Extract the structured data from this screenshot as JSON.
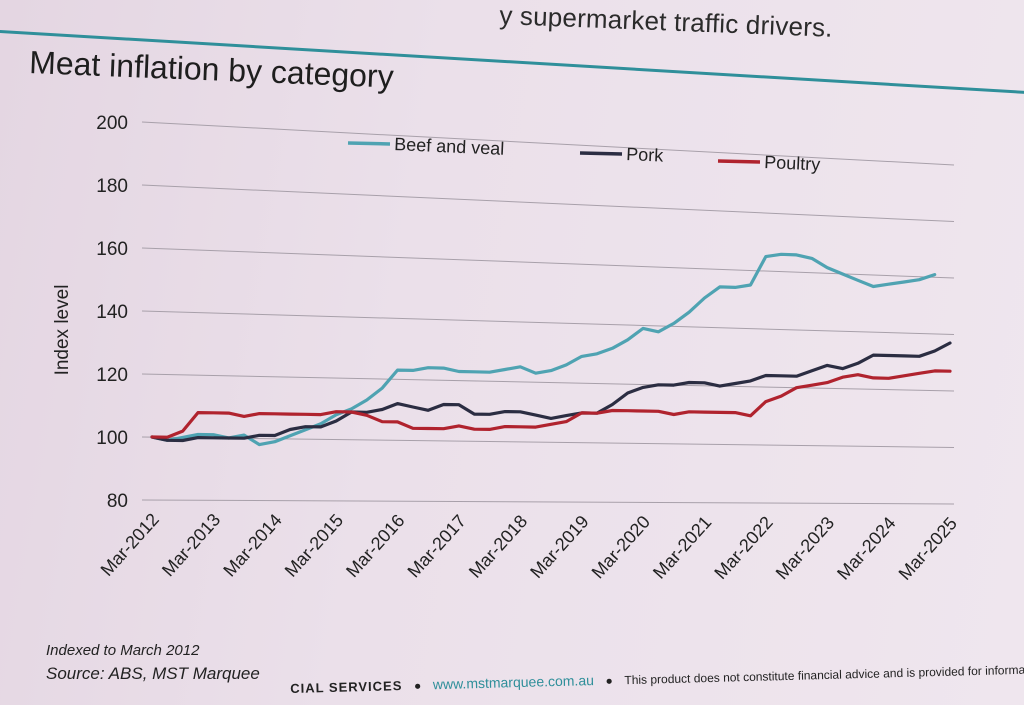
{
  "header": {
    "caption": "y supermarket traffic drivers."
  },
  "chart_data": {
    "type": "line",
    "title": "Meat inflation by category",
    "xlabel": "",
    "ylabel": "Index level",
    "ylim": [
      80,
      200
    ],
    "yticks": [
      80,
      100,
      120,
      140,
      160,
      180,
      200
    ],
    "xlim": [
      2012.17,
      2025.17
    ],
    "xticks": [
      {
        "label": "Mar-2012",
        "t": 2012.17
      },
      {
        "label": "Mar-2013",
        "t": 2013.17
      },
      {
        "label": "Mar-2014",
        "t": 2014.17
      },
      {
        "label": "Mar-2015",
        "t": 2015.17
      },
      {
        "label": "Mar-2016",
        "t": 2016.17
      },
      {
        "label": "Mar-2017",
        "t": 2017.17
      },
      {
        "label": "Mar-2018",
        "t": 2018.17
      },
      {
        "label": "Mar-2019",
        "t": 2019.17
      },
      {
        "label": "Mar-2020",
        "t": 2020.17
      },
      {
        "label": "Mar-2021",
        "t": 2021.17
      },
      {
        "label": "Mar-2022",
        "t": 2022.17
      },
      {
        "label": "Mar-2023",
        "t": 2023.17
      },
      {
        "label": "Mar-2024",
        "t": 2024.17
      },
      {
        "label": "Mar-2025",
        "t": 2025.17
      }
    ],
    "grid": true,
    "legend": "top",
    "series": [
      {
        "name": "Beef and veal",
        "color": "#4fa3b2",
        "points": [
          [
            2012.17,
            100
          ],
          [
            2012.42,
            99
          ],
          [
            2012.67,
            100
          ],
          [
            2012.92,
            101
          ],
          [
            2013.17,
            101
          ],
          [
            2013.42,
            100
          ],
          [
            2013.67,
            101
          ],
          [
            2013.92,
            98
          ],
          [
            2014.17,
            99
          ],
          [
            2014.42,
            101
          ],
          [
            2014.67,
            103
          ],
          [
            2014.92,
            105
          ],
          [
            2015.17,
            108
          ],
          [
            2015.42,
            110
          ],
          [
            2015.67,
            113
          ],
          [
            2015.92,
            117
          ],
          [
            2016.17,
            123
          ],
          [
            2016.42,
            123
          ],
          [
            2016.67,
            124
          ],
          [
            2016.92,
            124
          ],
          [
            2017.17,
            123
          ],
          [
            2017.42,
            123
          ],
          [
            2017.67,
            123
          ],
          [
            2017.92,
            124
          ],
          [
            2018.17,
            125
          ],
          [
            2018.42,
            123
          ],
          [
            2018.67,
            124
          ],
          [
            2018.92,
            126
          ],
          [
            2019.17,
            129
          ],
          [
            2019.42,
            130
          ],
          [
            2019.67,
            132
          ],
          [
            2019.92,
            135
          ],
          [
            2020.17,
            139
          ],
          [
            2020.42,
            138
          ],
          [
            2020.67,
            141
          ],
          [
            2020.92,
            145
          ],
          [
            2021.17,
            150
          ],
          [
            2021.42,
            154
          ],
          [
            2021.67,
            154
          ],
          [
            2021.92,
            155
          ],
          [
            2022.17,
            165
          ],
          [
            2022.42,
            166
          ],
          [
            2022.67,
            166
          ],
          [
            2022.92,
            165
          ],
          [
            2023.17,
            162
          ],
          [
            2023.42,
            160
          ],
          [
            2023.67,
            158
          ],
          [
            2023.92,
            156
          ],
          [
            2024.17,
            157
          ],
          [
            2024.42,
            158
          ],
          [
            2024.67,
            159
          ],
          [
            2024.92,
            161
          ]
        ]
      },
      {
        "name": "Pork",
        "color": "#2b2d42",
        "points": [
          [
            2012.17,
            100
          ],
          [
            2012.42,
            99
          ],
          [
            2012.67,
            99
          ],
          [
            2012.92,
            100
          ],
          [
            2013.17,
            100
          ],
          [
            2013.42,
            100
          ],
          [
            2013.67,
            100
          ],
          [
            2013.92,
            101
          ],
          [
            2014.17,
            101
          ],
          [
            2014.42,
            103
          ],
          [
            2014.67,
            104
          ],
          [
            2014.92,
            104
          ],
          [
            2015.17,
            106
          ],
          [
            2015.42,
            109
          ],
          [
            2015.67,
            109
          ],
          [
            2015.92,
            110
          ],
          [
            2016.17,
            112
          ],
          [
            2016.42,
            111
          ],
          [
            2016.67,
            110
          ],
          [
            2016.92,
            112
          ],
          [
            2017.17,
            112
          ],
          [
            2017.42,
            109
          ],
          [
            2017.67,
            109
          ],
          [
            2017.92,
            110
          ],
          [
            2018.17,
            110
          ],
          [
            2018.42,
            109
          ],
          [
            2018.67,
            108
          ],
          [
            2018.92,
            109
          ],
          [
            2019.17,
            110
          ],
          [
            2019.42,
            110
          ],
          [
            2019.67,
            113
          ],
          [
            2019.92,
            117
          ],
          [
            2020.17,
            119
          ],
          [
            2020.42,
            120
          ],
          [
            2020.67,
            120
          ],
          [
            2020.92,
            121
          ],
          [
            2021.17,
            121
          ],
          [
            2021.42,
            120
          ],
          [
            2021.67,
            121
          ],
          [
            2021.92,
            122
          ],
          [
            2022.17,
            124
          ],
          [
            2022.42,
            124
          ],
          [
            2022.67,
            124
          ],
          [
            2022.92,
            126
          ],
          [
            2023.17,
            128
          ],
          [
            2023.42,
            127
          ],
          [
            2023.67,
            129
          ],
          [
            2023.92,
            132
          ],
          [
            2024.17,
            132
          ],
          [
            2024.42,
            132
          ],
          [
            2024.67,
            132
          ],
          [
            2024.92,
            134
          ],
          [
            2025.17,
            137
          ]
        ]
      },
      {
        "name": "Poultry",
        "color": "#b0232e",
        "points": [
          [
            2012.17,
            100
          ],
          [
            2012.42,
            100
          ],
          [
            2012.67,
            102
          ],
          [
            2012.92,
            108
          ],
          [
            2013.17,
            108
          ],
          [
            2013.42,
            108
          ],
          [
            2013.67,
            107
          ],
          [
            2013.92,
            108
          ],
          [
            2014.17,
            108
          ],
          [
            2014.42,
            108
          ],
          [
            2014.67,
            108
          ],
          [
            2014.92,
            108
          ],
          [
            2015.17,
            109
          ],
          [
            2015.42,
            109
          ],
          [
            2015.67,
            108
          ],
          [
            2015.92,
            106
          ],
          [
            2016.17,
            106
          ],
          [
            2016.42,
            104
          ],
          [
            2016.67,
            104
          ],
          [
            2016.92,
            104
          ],
          [
            2017.17,
            105
          ],
          [
            2017.42,
            104
          ],
          [
            2017.67,
            104
          ],
          [
            2017.92,
            105
          ],
          [
            2018.17,
            105
          ],
          [
            2018.42,
            105
          ],
          [
            2018.67,
            106
          ],
          [
            2018.92,
            107
          ],
          [
            2019.17,
            110
          ],
          [
            2019.42,
            110
          ],
          [
            2019.67,
            111
          ],
          [
            2019.92,
            111
          ],
          [
            2020.17,
            111
          ],
          [
            2020.42,
            111
          ],
          [
            2020.67,
            110
          ],
          [
            2020.92,
            111
          ],
          [
            2021.17,
            111
          ],
          [
            2021.42,
            111
          ],
          [
            2021.67,
            111
          ],
          [
            2021.92,
            110
          ],
          [
            2022.17,
            115
          ],
          [
            2022.42,
            117
          ],
          [
            2022.67,
            120
          ],
          [
            2022.92,
            121
          ],
          [
            2023.17,
            122
          ],
          [
            2023.42,
            124
          ],
          [
            2023.67,
            125
          ],
          [
            2023.92,
            124
          ],
          [
            2024.17,
            124
          ],
          [
            2024.42,
            125
          ],
          [
            2024.67,
            126
          ],
          [
            2024.92,
            127
          ],
          [
            2025.17,
            127
          ]
        ]
      }
    ]
  },
  "footer": {
    "note": "Indexed to March 2012",
    "source": "Source: ABS, MST Marquee",
    "company": "CIAL SERVICES",
    "url": "www.mstmarquee.com.au",
    "disclaimer": "This product does not constitute financial advice and is provided for information purposes only.",
    "bullet": "●"
  }
}
